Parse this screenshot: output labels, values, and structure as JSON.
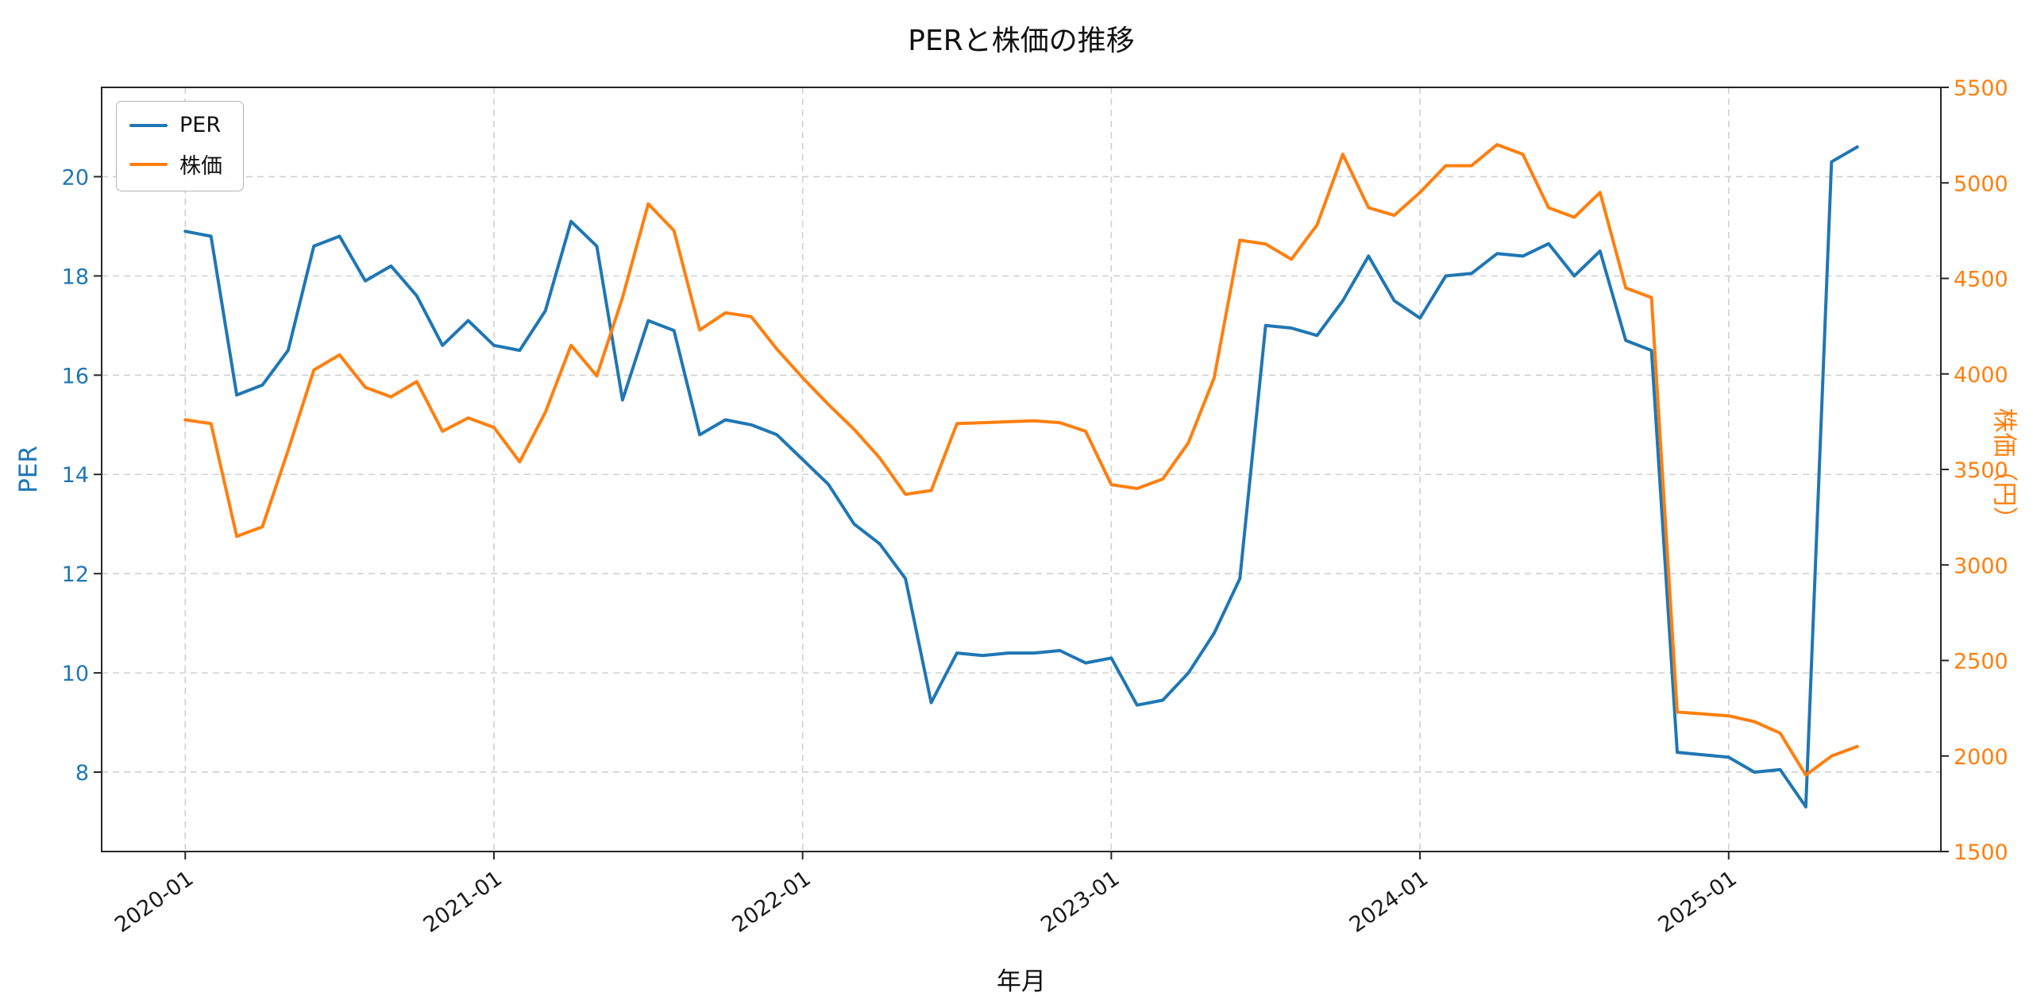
{
  "colors": {
    "per": "#1f77b4",
    "price": "#ff7f0e",
    "grid": "#d0d0d0",
    "axis": "#262626",
    "text": "#111111"
  },
  "chart_data": {
    "type": "line",
    "title": "PERと株価の推移",
    "xlabel": "年月",
    "grid": true,
    "legend_position": "upper left",
    "x_tick_labels": [
      "2020-01",
      "2021-01",
      "2022-01",
      "2023-01",
      "2024-01",
      "2025-01"
    ],
    "x_tick_positions": [
      0,
      12,
      24,
      36,
      48,
      60
    ],
    "x_range": [
      -3.25,
      68.25
    ],
    "months": [
      "2020-01",
      "2020-02",
      "2020-03",
      "2020-04",
      "2020-05",
      "2020-06",
      "2020-07",
      "2020-08",
      "2020-09",
      "2020-10",
      "2020-11",
      "2020-12",
      "2021-01",
      "2021-02",
      "2021-03",
      "2021-04",
      "2021-05",
      "2021-06",
      "2021-07",
      "2021-08",
      "2021-09",
      "2021-10",
      "2021-11",
      "2021-12",
      "2022-01",
      "2022-02",
      "2022-03",
      "2022-04",
      "2022-05",
      "2022-06",
      "2022-07",
      "2022-08",
      "2022-09",
      "2022-10",
      "2022-11",
      "2022-12",
      "2023-01",
      "2023-02",
      "2023-03",
      "2023-04",
      "2023-05",
      "2023-06",
      "2023-07",
      "2023-08",
      "2023-09",
      "2023-10",
      "2023-11",
      "2023-12",
      "2024-01",
      "2024-02",
      "2024-03",
      "2024-04",
      "2024-05",
      "2024-06",
      "2024-07",
      "2024-08",
      "2024-09",
      "2024-10",
      "2024-11",
      "2024-12",
      "2025-01",
      "2025-02",
      "2025-03",
      "2025-04",
      "2025-05",
      "2025-06"
    ],
    "left_axis": {
      "label": "PER",
      "ticks": [
        8,
        10,
        12,
        14,
        16,
        18,
        20
      ],
      "range": [
        6.4,
        21.8
      ]
    },
    "right_axis": {
      "label": "株価（円）",
      "ticks": [
        1500,
        2000,
        2500,
        3000,
        3500,
        4000,
        4500,
        5000,
        5500
      ],
      "range": [
        1500,
        5500
      ]
    },
    "series": [
      {
        "name": "PER",
        "axis": "left",
        "color": "#1f77b4",
        "values": [
          18.9,
          18.8,
          15.6,
          15.8,
          16.5,
          18.6,
          18.8,
          17.9,
          18.2,
          17.6,
          16.6,
          17.1,
          16.6,
          16.5,
          17.3,
          19.1,
          18.6,
          15.5,
          17.1,
          16.9,
          14.8,
          15.1,
          15.0,
          14.8,
          14.3,
          13.8,
          13.0,
          12.6,
          11.9,
          9.4,
          10.4,
          10.35,
          10.4,
          10.4,
          10.45,
          10.2,
          10.3,
          9.35,
          9.45,
          10.0,
          10.8,
          11.9,
          17.0,
          16.95,
          16.8,
          17.5,
          18.4,
          17.5,
          17.15,
          18.0,
          18.05,
          18.45,
          18.4,
          18.65,
          18.0,
          18.5,
          16.7,
          16.5,
          8.4,
          8.35,
          8.3,
          8.0,
          8.05,
          7.3,
          20.3,
          20.6
        ]
      },
      {
        "name": "株価",
        "axis": "right",
        "color": "#ff7f0e",
        "values": [
          3760,
          3740,
          3150,
          3200,
          3600,
          4020,
          4100,
          3930,
          3880,
          3960,
          3700,
          3770,
          3720,
          3540,
          3800,
          4150,
          3990,
          4400,
          4890,
          4750,
          4230,
          4320,
          4300,
          4130,
          3980,
          3840,
          3710,
          3560,
          3370,
          3390,
          3740,
          3745,
          3750,
          3755,
          3745,
          3700,
          3420,
          3400,
          3450,
          3640,
          3980,
          4700,
          4680,
          4600,
          4780,
          5150,
          4870,
          4830,
          4950,
          5090,
          5090,
          5200,
          5150,
          4870,
          4820,
          4950,
          4450,
          4400,
          2230,
          2220,
          2210,
          2180,
          2120,
          1900,
          2000,
          2050
        ]
      }
    ]
  }
}
